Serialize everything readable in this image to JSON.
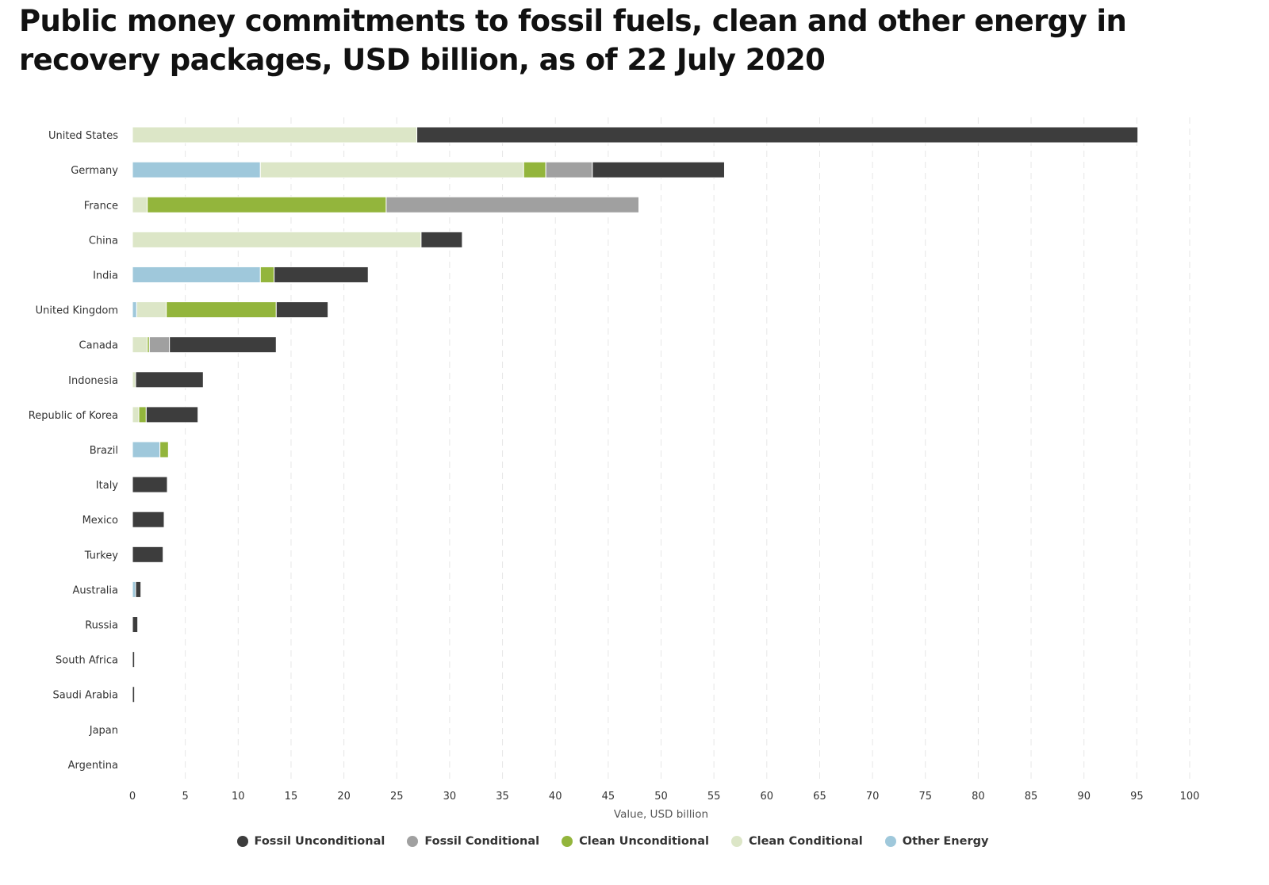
{
  "chart_data": {
    "type": "bar",
    "orientation": "horizontal",
    "stacked": true,
    "title": "Public money commitments to fossil fuels, clean and other energy in recovery packages, USD billion, as of 22 July 2020",
    "xlabel": "Value, USD billion",
    "ylabel": "",
    "xlim": [
      0,
      100
    ],
    "xticks": [
      0,
      5,
      10,
      15,
      20,
      25,
      30,
      35,
      40,
      45,
      50,
      55,
      60,
      65,
      70,
      75,
      80,
      85,
      90,
      95,
      100
    ],
    "grid": true,
    "legend_position": "bottom",
    "categories": [
      "United States",
      "Germany",
      "France",
      "China",
      "India",
      "United Kingdom",
      "Canada",
      "Indonesia",
      "Republic of Korea",
      "Brazil",
      "Italy",
      "Mexico",
      "Turkey",
      "Australia",
      "Russia",
      "South Africa",
      "Saudi Arabia",
      "Japan",
      "Argentina"
    ],
    "series": [
      {
        "name": "Other Energy",
        "color": "#9fc8db",
        "values": [
          0,
          12.1,
          0,
          0,
          12.1,
          0.4,
          0,
          0,
          0,
          2.6,
          0,
          0,
          0,
          0.3,
          0,
          0,
          0,
          0,
          0
        ]
      },
      {
        "name": "Clean Conditional",
        "color": "#dce6c7",
        "values": [
          26.9,
          24.9,
          1.4,
          27.3,
          0,
          2.8,
          1.4,
          0.3,
          0.6,
          0,
          0,
          0,
          0,
          0,
          0,
          0,
          0,
          0,
          0
        ]
      },
      {
        "name": "Clean Unconditional",
        "color": "#93b53c",
        "values": [
          0,
          2.1,
          22.6,
          0,
          1.3,
          10.4,
          0.2,
          0,
          0.7,
          0.8,
          0,
          0,
          0,
          0,
          0,
          0,
          0,
          0,
          0
        ]
      },
      {
        "name": "Fossil Conditional",
        "color": "#a0a0a0",
        "values": [
          0,
          4.4,
          23.9,
          0,
          0,
          0,
          1.9,
          0,
          0,
          0,
          0,
          0,
          0,
          0,
          0,
          0,
          0,
          0,
          0
        ]
      },
      {
        "name": "Fossil Unconditional",
        "color": "#3d3d3d",
        "values": [
          68.2,
          12.5,
          0,
          3.9,
          8.9,
          4.9,
          10.1,
          6.4,
          4.9,
          0,
          3.3,
          3.0,
          2.9,
          0.5,
          0.5,
          0.2,
          0.2,
          0,
          0
        ]
      }
    ],
    "legend_order": [
      "Fossil Unconditional",
      "Fossil Conditional",
      "Clean Unconditional",
      "Clean Conditional",
      "Other Energy"
    ]
  }
}
